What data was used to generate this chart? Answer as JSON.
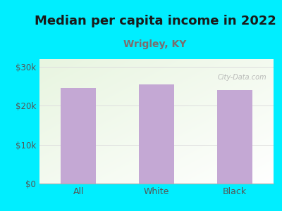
{
  "title": "Median per capita income in 2022",
  "subtitle": "Wrigley, KY",
  "categories": [
    "All",
    "White",
    "Black"
  ],
  "values": [
    24500,
    25500,
    24100
  ],
  "bar_color": "#c4a8d4",
  "title_fontsize": 13,
  "subtitle_fontsize": 10,
  "subtitle_color": "#7a6e6e",
  "title_color": "#1a1a1a",
  "tick_label_color": "#555555",
  "background_color": "#00eeff",
  "ylim": [
    0,
    32000
  ],
  "yticks": [
    0,
    10000,
    20000,
    30000
  ],
  "ytick_labels": [
    "$0",
    "$10k",
    "$20k",
    "$30k"
  ],
  "watermark": "City-Data.com",
  "grid_color": "#dddddd"
}
